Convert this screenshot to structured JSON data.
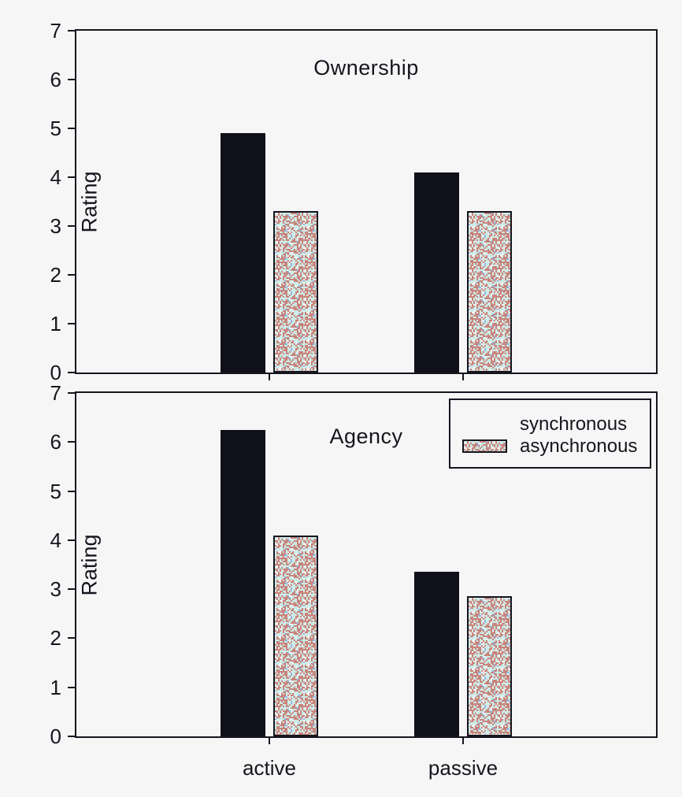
{
  "figure": {
    "ylabel": "Rating",
    "categories": [
      "active",
      "passive"
    ],
    "legend": {
      "position": "top-right-of-agency-panel",
      "items": [
        {
          "label": "synchronous",
          "style": "solid-black"
        },
        {
          "label": "asynchronous",
          "style": "stipple"
        }
      ]
    },
    "colors": {
      "bar_solid": "#10101a",
      "axis": "#15151d",
      "background": "#f6f6f7",
      "stipple_cyan": "#cdebe7",
      "stipple_salmon": "#c9837b",
      "stipple_blue": "#93b7e2",
      "stipple_white": "#f2f4f2"
    }
  },
  "chart_data": [
    {
      "type": "bar",
      "title": "Ownership",
      "ylabel": "Rating",
      "categories": [
        "active",
        "passive"
      ],
      "series": [
        {
          "name": "synchronous",
          "values": [
            4.9,
            4.1
          ]
        },
        {
          "name": "asynchronous",
          "values": [
            3.3,
            3.3
          ]
        }
      ],
      "ylim": [
        0,
        7
      ],
      "yticks": [
        0,
        1,
        2,
        3,
        4,
        5,
        6,
        7
      ],
      "x_tick_labels_visible": false,
      "grid": false
    },
    {
      "type": "bar",
      "title": "Agency",
      "ylabel": "Rating",
      "categories": [
        "active",
        "passive"
      ],
      "series": [
        {
          "name": "synchronous",
          "values": [
            6.25,
            3.35
          ]
        },
        {
          "name": "asynchronous",
          "values": [
            4.1,
            2.85
          ]
        }
      ],
      "ylim": [
        0,
        7
      ],
      "yticks": [
        0,
        1,
        2,
        3,
        4,
        5,
        6,
        7
      ],
      "x_tick_labels_visible": true,
      "grid": false
    }
  ]
}
